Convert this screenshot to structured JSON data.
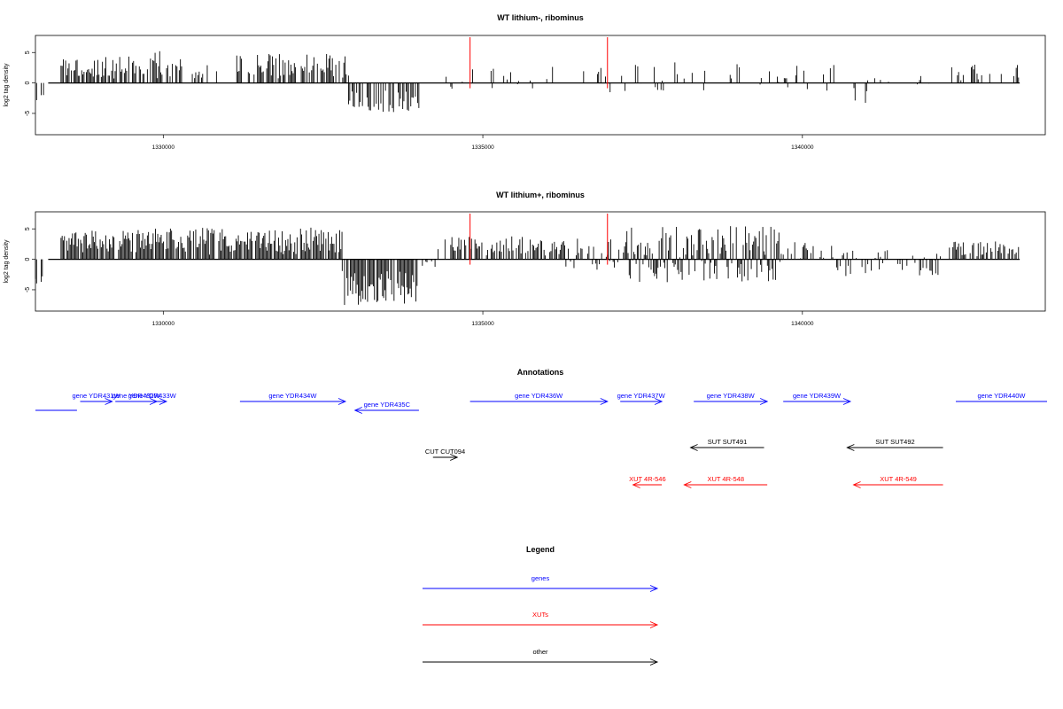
{
  "colors": {
    "gene": "#0000ff",
    "xut": "#ff0000",
    "other": "#000000",
    "signal": "#000000",
    "marker": "#ff0000"
  },
  "chart_data": [
    {
      "type": "bar",
      "title": "WT lithium-, ribominus",
      "xlabel": "",
      "ylabel": "log2 tag density",
      "xlim": [
        1328000,
        1343800
      ],
      "ylim": [
        -8.5,
        7.8
      ],
      "xticks": [
        1330000,
        1335000,
        1340000
      ],
      "xtick_labels": [
        "1330000",
        "1335000",
        "1340000"
      ],
      "yticks": [
        -5,
        0,
        5
      ],
      "ytick_labels": [
        "-5",
        "0",
        "5"
      ],
      "markers": [
        1334800,
        1336950
      ],
      "segments": [
        {
          "x0": 1328000,
          "x1": 1328130,
          "lo": -3.2,
          "hi": 0,
          "dens": 0.35
        },
        {
          "x0": 1328400,
          "x1": 1329800,
          "lo": 0,
          "hi": 4.5,
          "dens": 0.7
        },
        {
          "x0": 1329800,
          "x1": 1330300,
          "lo": 0,
          "hi": 5.3,
          "dens": 0.8
        },
        {
          "x0": 1330400,
          "x1": 1330850,
          "lo": 0,
          "hi": 3.2,
          "dens": 0.3
        },
        {
          "x0": 1331150,
          "x1": 1332900,
          "lo": 0,
          "hi": 4.8,
          "dens": 0.6
        },
        {
          "x0": 1332900,
          "x1": 1334000,
          "lo": -4.8,
          "hi": 0,
          "dens": 0.6
        },
        {
          "x0": 1334300,
          "x1": 1336000,
          "lo": -1.0,
          "hi": 2.5,
          "dens": 0.12
        },
        {
          "x0": 1336000,
          "x1": 1337500,
          "lo": -1.8,
          "hi": 3.2,
          "dens": 0.2
        },
        {
          "x0": 1337500,
          "x1": 1340500,
          "lo": -2.0,
          "hi": 3.5,
          "dens": 0.22
        },
        {
          "x0": 1340500,
          "x1": 1342300,
          "lo": -3.5,
          "hi": 1.5,
          "dens": 0.1
        },
        {
          "x0": 1342300,
          "x1": 1343400,
          "lo": 0,
          "hi": 3.2,
          "dens": 0.25
        }
      ]
    },
    {
      "type": "bar",
      "title": "WT lithium+, ribominus",
      "xlabel": "",
      "ylabel": "log2 tag density",
      "xlim": [
        1328000,
        1343800
      ],
      "ylim": [
        -8.5,
        7.8
      ],
      "xticks": [
        1330000,
        1335000,
        1340000
      ],
      "xtick_labels": [
        "1330000",
        "1335000",
        "1340000"
      ],
      "yticks": [
        -5,
        0,
        5
      ],
      "ytick_labels": [
        "-5",
        "0",
        "5"
      ],
      "markers": [
        1334800,
        1336950
      ],
      "segments": [
        {
          "x0": 1328000,
          "x1": 1328130,
          "lo": -4.0,
          "hi": 0,
          "dens": 0.4
        },
        {
          "x0": 1328400,
          "x1": 1332800,
          "lo": 0,
          "hi": 5.2,
          "dens": 0.9
        },
        {
          "x0": 1332800,
          "x1": 1334000,
          "lo": -7.5,
          "hi": 0,
          "dens": 0.9
        },
        {
          "x0": 1334000,
          "x1": 1334300,
          "lo": -1.5,
          "hi": 0.5,
          "dens": 0.3
        },
        {
          "x0": 1334300,
          "x1": 1336300,
          "lo": 0,
          "hi": 3.8,
          "dens": 0.6
        },
        {
          "x0": 1336300,
          "x1": 1337200,
          "lo": -2.0,
          "hi": 3.5,
          "dens": 0.5
        },
        {
          "x0": 1337200,
          "x1": 1339700,
          "lo": -3.8,
          "hi": 5.5,
          "dens": 0.95
        },
        {
          "x0": 1339700,
          "x1": 1340500,
          "lo": -1.0,
          "hi": 3.0,
          "dens": 0.4
        },
        {
          "x0": 1340500,
          "x1": 1342200,
          "lo": -2.8,
          "hi": 1.5,
          "dens": 0.5
        },
        {
          "x0": 1342300,
          "x1": 1343400,
          "lo": 0,
          "hi": 3.0,
          "dens": 0.6
        }
      ]
    }
  ],
  "annotations": {
    "title": "Annotations",
    "features": [
      {
        "label": "",
        "type": "gene",
        "start": 1328000,
        "end": 1328650,
        "dir": "none",
        "lane": 1
      },
      {
        "label": "gene YDR431W",
        "type": "gene",
        "start": 1328700,
        "end": 1329200,
        "dir": "+",
        "lane": 0
      },
      {
        "label": "gene YDR432W",
        "type": "gene",
        "start": 1329250,
        "end": 1329900,
        "dir": "+",
        "lane": 0
      },
      {
        "label": "gene YDR433W",
        "type": "gene",
        "start": 1329600,
        "end": 1330050,
        "dir": "+",
        "lane": 0
      },
      {
        "label": "gene YDR434W",
        "type": "gene",
        "start": 1331200,
        "end": 1332850,
        "dir": "+",
        "lane": 0
      },
      {
        "label": "gene YDR435C",
        "type": "gene",
        "start": 1333000,
        "end": 1334000,
        "dir": "-",
        "lane": 1
      },
      {
        "label": "gene YDR436W",
        "type": "gene",
        "start": 1334800,
        "end": 1336950,
        "dir": "+",
        "lane": 0
      },
      {
        "label": "gene YDR437W",
        "type": "gene",
        "start": 1337150,
        "end": 1337800,
        "dir": "+",
        "lane": 0
      },
      {
        "label": "gene YDR438W",
        "type": "gene",
        "start": 1338300,
        "end": 1339450,
        "dir": "+",
        "lane": 0
      },
      {
        "label": "gene YDR439W",
        "type": "gene",
        "start": 1339700,
        "end": 1340750,
        "dir": "+",
        "lane": 0
      },
      {
        "label": "gene YDR440W",
        "type": "gene",
        "start": 1342400,
        "end": 1343900,
        "dir": "none",
        "lane": 0
      },
      {
        "label": "CUT CUT094",
        "type": "other",
        "start": 1334220,
        "end": 1334600,
        "dir": "+",
        "lane": 3
      },
      {
        "label": "SUT SUT491",
        "type": "other",
        "start": 1338250,
        "end": 1339400,
        "dir": "-",
        "lane": 2
      },
      {
        "label": "SUT SUT492",
        "type": "other",
        "start": 1340700,
        "end": 1342200,
        "dir": "-",
        "lane": 2
      },
      {
        "label": "XUT 4R-546",
        "type": "xut",
        "start": 1337350,
        "end": 1337800,
        "dir": "-",
        "lane": 4
      },
      {
        "label": "XUT 4R-548",
        "type": "xut",
        "start": 1338150,
        "end": 1339450,
        "dir": "-",
        "lane": 4
      },
      {
        "label": "XUT 4R-549",
        "type": "xut",
        "start": 1340800,
        "end": 1342200,
        "dir": "-",
        "lane": 4
      }
    ]
  },
  "legend": {
    "title": "Legend",
    "items": [
      {
        "label": "genes",
        "type": "gene"
      },
      {
        "label": "XUTs",
        "type": "xut"
      },
      {
        "label": "other",
        "type": "other"
      }
    ]
  }
}
